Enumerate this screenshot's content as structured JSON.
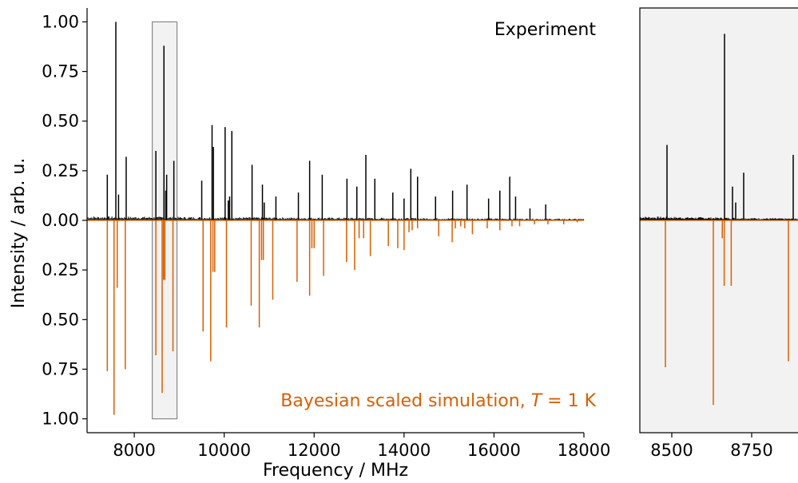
{
  "chart_data": [
    {
      "type": "line",
      "panel": "main",
      "xlabel": "Frequency / MHz",
      "ylabel": "Intensity / arb. u.",
      "xlim": [
        6950,
        18000
      ],
      "ylim": [
        -1.07,
        1.07
      ],
      "x_ticks": [
        8000,
        10000,
        12000,
        14000,
        16000,
        18000
      ],
      "y_ticks": [
        {
          "value": 1.0,
          "label": "1.00"
        },
        {
          "value": 0.75,
          "label": "0.75"
        },
        {
          "value": 0.5,
          "label": "0.50"
        },
        {
          "value": 0.25,
          "label": "0.25"
        },
        {
          "value": 0.0,
          "label": "0.00"
        },
        {
          "value": -0.25,
          "label": "0.25"
        },
        {
          "value": -0.5,
          "label": "0.50"
        },
        {
          "value": -0.75,
          "label": "0.75"
        },
        {
          "value": -1.0,
          "label": "1.00"
        }
      ],
      "annotations": {
        "experiment": "Experiment",
        "simulation_prefix": "Bayesian scaled simulation, ",
        "simulation_T": "T",
        "simulation_suffix": " = 1 K"
      },
      "zoom_box": {
        "x": [
          8400,
          8950
        ],
        "y": [
          -1.0,
          1.0
        ]
      },
      "colors": {
        "experiment": "#000000",
        "simulation": "#d95f02",
        "zoom_fill": "#f2f2f2",
        "zoom_edge": "#888888"
      },
      "series": [
        {
          "name": "Experiment",
          "noise_level": 0.02,
          "x": [
            7400,
            7590,
            7650,
            7820,
            8480,
            8660,
            8700,
            8720,
            8880,
            9500,
            9730,
            9760,
            10020,
            10090,
            10120,
            10170,
            10620,
            10850,
            10890,
            11150,
            11650,
            11900,
            12180,
            12730,
            12950,
            13150,
            13350,
            13750,
            14000,
            14150,
            14300,
            14700,
            15080,
            15400,
            15880,
            16130,
            16350,
            16480,
            16800,
            17150
          ],
          "values": [
            0.23,
            1.0,
            0.13,
            0.32,
            0.35,
            0.88,
            0.15,
            0.23,
            0.3,
            0.2,
            0.48,
            0.37,
            0.47,
            0.1,
            0.12,
            0.45,
            0.28,
            0.18,
            0.09,
            0.12,
            0.14,
            0.3,
            0.23,
            0.21,
            0.17,
            0.33,
            0.21,
            0.14,
            0.11,
            0.26,
            0.22,
            0.12,
            0.15,
            0.18,
            0.11,
            0.15,
            0.22,
            0.12,
            0.06,
            0.08
          ]
        },
        {
          "name": "Simulation",
          "x": [
            7400,
            7550,
            7620,
            7800,
            8480,
            8620,
            8650,
            8680,
            8860,
            9530,
            9700,
            9750,
            9790,
            10050,
            10600,
            10780,
            10830,
            10870,
            11080,
            11620,
            11900,
            11950,
            12000,
            12210,
            12720,
            12900,
            13000,
            13100,
            13250,
            13650,
            13860,
            14000,
            14110,
            14180,
            14300,
            14770,
            15070,
            15140,
            15260,
            15350,
            15520,
            15850,
            16130,
            16400,
            16570,
            16900,
            17200,
            17550,
            17850
          ],
          "values": [
            -0.76,
            -0.98,
            -0.34,
            -0.75,
            -0.68,
            -0.87,
            -0.3,
            -0.3,
            -0.66,
            -0.56,
            -0.71,
            -0.26,
            -0.26,
            -0.54,
            -0.43,
            -0.54,
            -0.2,
            -0.2,
            -0.4,
            -0.31,
            -0.38,
            -0.14,
            -0.14,
            -0.28,
            -0.21,
            -0.25,
            -0.09,
            -0.09,
            -0.18,
            -0.13,
            -0.14,
            -0.15,
            -0.06,
            -0.05,
            -0.04,
            -0.08,
            -0.11,
            -0.04,
            -0.03,
            -0.04,
            -0.07,
            -0.04,
            -0.05,
            -0.03,
            -0.03,
            -0.02,
            -0.02,
            -0.02,
            -0.01
          ]
        }
      ]
    },
    {
      "type": "line",
      "panel": "inset",
      "xlim": [
        8400,
        8950
      ],
      "ylim": [
        -1.07,
        1.07
      ],
      "x_ticks": [
        8500,
        8750
      ],
      "background": "#f2f2f2",
      "series": [
        {
          "name": "Experiment",
          "noise_level": 0.02,
          "x": [
            8485,
            8665,
            8690,
            8700,
            8725,
            8880
          ],
          "values": [
            0.38,
            0.94,
            0.17,
            0.09,
            0.24,
            0.33
          ]
        },
        {
          "name": "Simulation",
          "x": [
            8480,
            8630,
            8658,
            8664,
            8686,
            8865
          ],
          "values": [
            -0.74,
            -0.93,
            -0.09,
            -0.33,
            -0.33,
            -0.71
          ]
        }
      ]
    }
  ]
}
